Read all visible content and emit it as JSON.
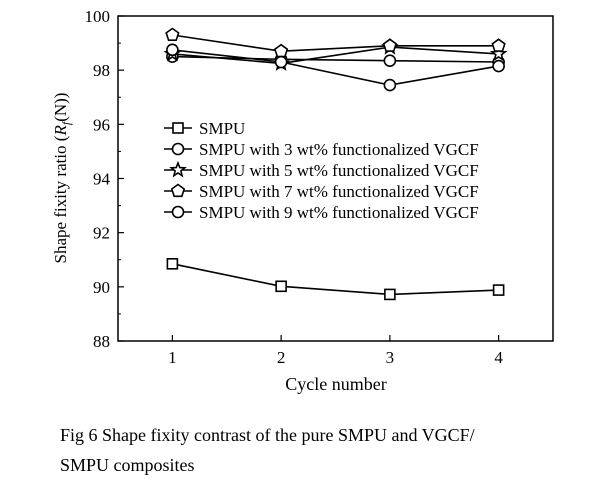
{
  "chart_data": {
    "type": "line",
    "ylabel_prefix": "Shape fixity ratio (",
    "ylabel_var": "R",
    "ylabel_sub": "f",
    "ylabel_suffix": "(N))",
    "xlabel": "Cycle number",
    "x": [
      1,
      2,
      3,
      4
    ],
    "xlim": [
      0.5,
      4.5
    ],
    "ylim": [
      88,
      100
    ],
    "yticks": [
      88,
      90,
      92,
      94,
      96,
      98,
      100
    ],
    "xticks": [
      1,
      2,
      3,
      4
    ],
    "grid": false,
    "legend_position": "center",
    "series": [
      {
        "name": "SMPU",
        "marker": "square",
        "values": [
          90.85,
          90.02,
          89.72,
          89.88
        ]
      },
      {
        "name": "SMPU with 3 wt% functionalized VGCF",
        "marker": "circle",
        "values": [
          98.5,
          98.4,
          98.35,
          98.3
        ]
      },
      {
        "name": "SMPU with 5 wt% functionalized VGCF",
        "marker": "star",
        "values": [
          98.6,
          98.25,
          98.85,
          98.6
        ]
      },
      {
        "name": "SMPU with 7 wt% functionalized VGCF",
        "marker": "pentagon",
        "values": [
          99.3,
          98.7,
          98.9,
          98.9
        ]
      },
      {
        "name": "SMPU with 9 wt% functionalized VGCF",
        "marker": "circle",
        "values": [
          98.75,
          98.3,
          97.45,
          98.15
        ]
      }
    ]
  },
  "caption": {
    "line1": "Fig 6   Shape fixity contrast of the pure SMPU and VGCF/",
    "line2": "SMPU composites"
  }
}
